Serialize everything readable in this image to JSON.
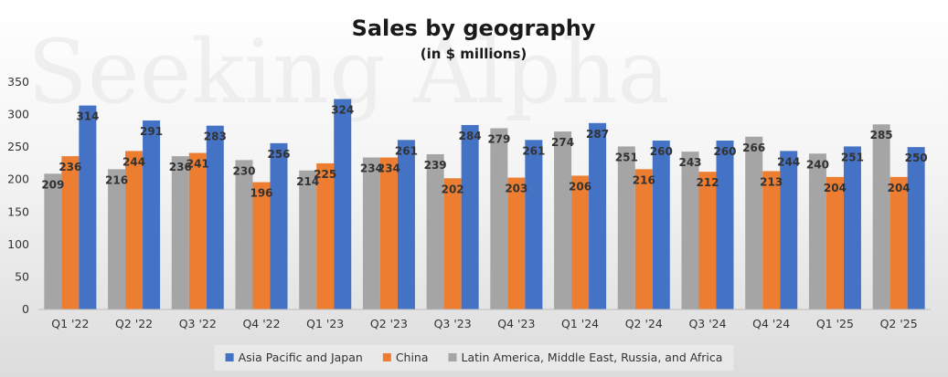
{
  "chart_data": {
    "type": "bar",
    "title": "Sales by geography",
    "subtitle": "(in $ millions)",
    "watermark": "Seeking Alpha",
    "categories": [
      "Q1 '22",
      "Q2 '22",
      "Q3 '22",
      "Q4 '22",
      "Q1 '23",
      "Q2 '23",
      "Q3 '23",
      "Q4 '23",
      "Q1 '24",
      "Q2 '24",
      "Q3 '24",
      "Q4 '24",
      "Q1 '25",
      "Q2 '25"
    ],
    "series": [
      {
        "name": "Latin America, Middle East, Russia, and Africa",
        "color": "#a5a5a5",
        "values": [
          209,
          216,
          236,
          230,
          214,
          234,
          239,
          279,
          274,
          251,
          243,
          266,
          240,
          285
        ]
      },
      {
        "name": "China",
        "color": "#ed7d31",
        "values": [
          236,
          244,
          241,
          196,
          225,
          234,
          202,
          203,
          206,
          216,
          212,
          213,
          204,
          204
        ]
      },
      {
        "name": "Asia Pacific and Japan",
        "color": "#4472c4",
        "values": [
          314,
          291,
          283,
          256,
          324,
          261,
          284,
          261,
          287,
          260,
          260,
          244,
          251,
          250
        ]
      }
    ],
    "legend_order": [
      "Asia Pacific and Japan",
      "China",
      "Latin America, Middle East, Russia, and Africa"
    ],
    "legend_position": "bottom",
    "yticks": [
      0,
      50,
      100,
      150,
      200,
      250,
      300,
      350
    ],
    "ylim": [
      0,
      350
    ],
    "grid": false
  }
}
